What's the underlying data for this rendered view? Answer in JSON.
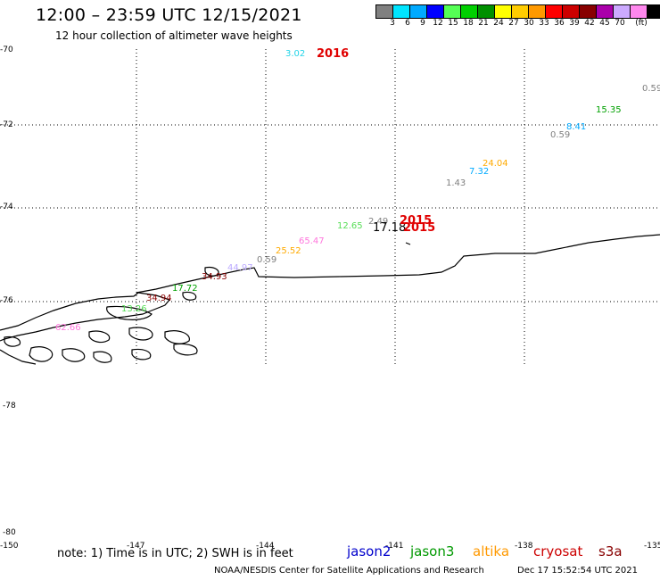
{
  "title": "12:00 – 23:59 UTC 12/15/2021",
  "subtitle": "12 hour collection of altimeter wave heights",
  "colorbar": {
    "unit": "(ft)",
    "colors": [
      "#808080",
      "#00e5ff",
      "#00aaff",
      "#0000ff",
      "#55ff55",
      "#00d000",
      "#009000",
      "#ffff00",
      "#ffcc00",
      "#ff9900",
      "#ff0000",
      "#cc0000",
      "#880000",
      "#aa00aa",
      "#ccaaff",
      "#ff88ee",
      "#000000"
    ],
    "labels": [
      "3",
      "6",
      "9",
      "12",
      "15",
      "18",
      "21",
      "24",
      "27",
      "30",
      "33",
      "36",
      "39",
      "42",
      "45",
      "70"
    ]
  },
  "axes": {
    "lat_labels": [
      "-70",
      "-72",
      "-74",
      "-76",
      "-78",
      "-80"
    ],
    "lon_labels": [
      "-150",
      "-147",
      "-144",
      "-141",
      "-138",
      "-135"
    ]
  },
  "wave_heights": [
    {
      "value": "3.02",
      "color": "#22d4e8"
    },
    {
      "value": "0.59",
      "color": "#808080"
    },
    {
      "value": "15.35",
      "color": "#00a000"
    },
    {
      "value": "8.41",
      "color": "#00aaff"
    },
    {
      "value": "0.59",
      "color": "#808080"
    },
    {
      "value": "24.04",
      "color": "#ffaa00"
    },
    {
      "value": "7.32",
      "color": "#00aaff"
    },
    {
      "value": "1.43",
      "color": "#808080"
    },
    {
      "value": "2.49",
      "color": "#808080"
    },
    {
      "value": "17.18",
      "color": "#000000"
    },
    {
      "value": "12.65",
      "color": "#55dd55"
    },
    {
      "value": "65.47",
      "color": "#ff77dd"
    },
    {
      "value": "25.52",
      "color": "#ffaa00"
    },
    {
      "value": "0.59",
      "color": "#808080"
    },
    {
      "value": "44.97",
      "color": "#bbaaff"
    },
    {
      "value": "34.93",
      "color": "#880000"
    },
    {
      "value": "17.72",
      "color": "#00a000"
    },
    {
      "value": "34.94",
      "color": "#880000"
    },
    {
      "value": "13.26",
      "color": "#55dd55"
    },
    {
      "value": "62.66",
      "color": "#ff77dd"
    }
  ],
  "cycle_labels": [
    "2016",
    "2015",
    "2015"
  ],
  "footer": {
    "note": "note:  1) Time is in UTC;  2) SWH is in feet",
    "legend": [
      {
        "name": "jason2",
        "color": "#0000cc"
      },
      {
        "name": "jason3",
        "color": "#009900"
      },
      {
        "name": "altika",
        "color": "#ff9900"
      },
      {
        "name": "cryosat",
        "color": "#cc0000"
      },
      {
        "name": "s3a",
        "color": "#880000"
      }
    ],
    "credit": "NOAA/NESDIS Center for Satellite Applications and Research",
    "timestamp": "Dec 17 15:52:54 UTC 2021"
  }
}
